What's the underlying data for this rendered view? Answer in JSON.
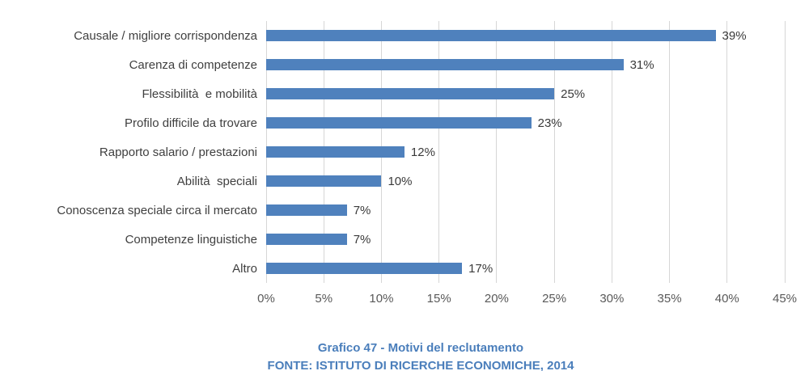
{
  "chart_data": {
    "type": "bar",
    "orientation": "horizontal",
    "categories": [
      "Causale / migliore corrispondenza",
      "Carenza di competenze",
      "Flessibilità  e mobilità",
      "Profilo difficile da trovare",
      "Rapporto salario / prestazioni",
      "Abilità  speciali",
      "Conoscenza speciale circa il mercato",
      "Competenze linguistiche",
      "Altro"
    ],
    "values": [
      39,
      31,
      25,
      23,
      12,
      10,
      7,
      7,
      17
    ],
    "value_label_suffix": "%",
    "x_ticks": [
      "0%",
      "5%",
      "10%",
      "15%",
      "20%",
      "25%",
      "30%",
      "35%",
      "40%",
      "45%"
    ],
    "xlim": [
      0,
      45
    ],
    "grid": "vertical-on",
    "legend": "none",
    "title": "Grafico 47 - Motivi del reclutamento",
    "source": "FONTE: ISTITUTO DI RICERCHE ECONOMICHE, 2014",
    "colors": {
      "bar": "#4f81bd",
      "gridline": "#d6d6d6",
      "category_text": "#3f3f3f",
      "value_text": "#3a3a3a",
      "tick_text": "#595959",
      "caption_text": "#4a7ebb"
    }
  }
}
